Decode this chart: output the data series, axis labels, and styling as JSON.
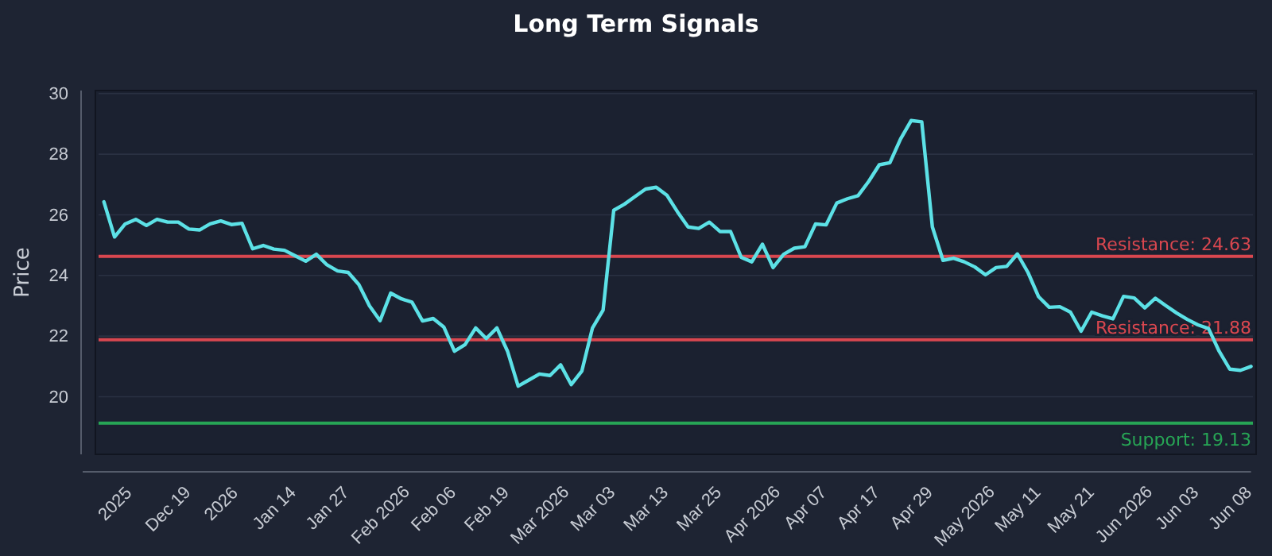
{
  "chart_data": {
    "type": "line",
    "title": "Long Term Signals",
    "ylabel": "Price",
    "categories": [
      null,
      null,
      null,
      "2025",
      null,
      null,
      null,
      null,
      "Dec 19",
      null,
      null,
      null,
      null,
      "2026",
      null,
      null,
      null,
      null,
      "Jan 14",
      null,
      null,
      null,
      null,
      "Jan 27",
      null,
      null,
      null,
      null,
      "Feb 2026",
      null,
      null,
      null,
      null,
      "Feb 06",
      null,
      null,
      null,
      null,
      "Feb 19",
      null,
      null,
      null,
      null,
      "Mar 2026",
      null,
      null,
      null,
      null,
      "Mar 03",
      null,
      null,
      null,
      null,
      "Mar 13",
      null,
      null,
      null,
      null,
      "Mar 25",
      null,
      null,
      null,
      null,
      "Apr 2026",
      null,
      null,
      null,
      null,
      "Apr 07",
      null,
      null,
      null,
      null,
      "Apr 17",
      null,
      null,
      null,
      null,
      "Apr 29",
      null,
      null,
      null,
      null,
      "May 2026",
      null,
      null,
      null,
      null,
      "May 11",
      null,
      null,
      null,
      null,
      "May 21",
      null,
      null,
      null,
      null,
      "Jun 2026",
      null,
      null,
      null,
      null,
      "Jun 03",
      null,
      null,
      null,
      null,
      "Jun 08",
      null,
      null
    ],
    "series": [
      {
        "color": "#5ce1e6",
        "values": [
          null,
          null,
          26.43,
          25.27,
          25.7,
          25.85,
          25.65,
          25.85,
          25.76,
          25.76,
          25.53,
          25.5,
          25.7,
          25.8,
          25.68,
          25.72,
          24.88,
          24.99,
          24.87,
          24.83,
          24.65,
          24.47,
          24.7,
          24.35,
          24.15,
          24.1,
          23.7,
          23.0,
          22.51,
          23.42,
          23.23,
          23.12,
          22.5,
          22.58,
          22.3,
          21.5,
          21.72,
          22.27,
          21.92,
          22.27,
          21.5,
          20.35,
          20.55,
          20.75,
          20.7,
          21.05,
          20.4,
          20.85,
          22.27,
          22.86,
          26.15,
          26.35,
          26.6,
          26.85,
          26.91,
          26.65,
          26.1,
          25.6,
          25.55,
          25.76,
          25.45,
          25.45,
          24.6,
          24.45,
          25.03,
          24.26,
          24.7,
          24.9,
          24.95,
          25.7,
          25.67,
          26.39,
          26.53,
          26.63,
          27.1,
          27.65,
          27.72,
          28.5,
          29.11,
          29.07,
          25.6,
          24.5,
          24.57,
          24.45,
          24.28,
          24.02,
          24.26,
          24.3,
          24.71,
          24.1,
          23.3,
          22.95,
          22.97,
          22.79,
          22.16,
          22.79,
          22.67,
          22.57,
          23.31,
          23.26,
          22.93,
          23.25,
          23.0,
          22.76,
          22.55,
          22.37,
          22.25,
          21.5,
          20.91,
          20.87,
          21.0
        ]
      }
    ],
    "ylim": [
      18.1,
      30.1
    ],
    "yticks": [
      20,
      22,
      24,
      26,
      28,
      30
    ],
    "grid": "y",
    "marker": "none",
    "line_style": "solid",
    "ref_lines": [
      {
        "axis": "y",
        "value": 24.63,
        "label": "Resistance: 24.63",
        "color": "#d9474f"
      },
      {
        "axis": "y",
        "value": 21.88,
        "label": "Resistance: 21.88",
        "color": "#d9474f"
      },
      {
        "axis": "y",
        "value": 19.13,
        "label": "Support: 19.13",
        "color": "#27a555"
      }
    ]
  }
}
